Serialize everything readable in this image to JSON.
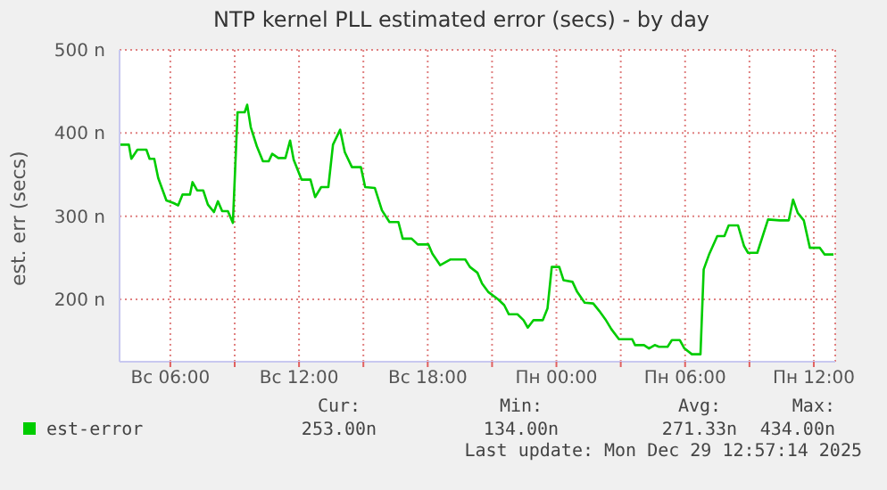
{
  "chart_data": {
    "type": "line",
    "title": "NTP kernel PLL estimated error (secs) - by day",
    "ylabel": "est. err (secs)",
    "xlim": [
      "2025-12-28T03:38",
      "2025-12-29T13:00"
    ],
    "xticks": [
      {
        "value": "2025-12-28T06:00",
        "label": "Вс 06:00"
      },
      {
        "value": "2025-12-28T09:00",
        "label": null
      },
      {
        "value": "2025-12-28T12:00",
        "label": "Вс 12:00"
      },
      {
        "value": "2025-12-28T15:00",
        "label": null
      },
      {
        "value": "2025-12-28T18:00",
        "label": "Вс 18:00"
      },
      {
        "value": "2025-12-28T21:00",
        "label": null
      },
      {
        "value": "2025-12-29T00:00",
        "label": "Пн 00:00"
      },
      {
        "value": "2025-12-29T03:00",
        "label": null
      },
      {
        "value": "2025-12-29T06:00",
        "label": "Пн 06:00"
      },
      {
        "value": "2025-12-29T09:00",
        "label": null
      },
      {
        "value": "2025-12-29T12:00",
        "label": "Пн 12:00"
      }
    ],
    "ylim": [
      125,
      500
    ],
    "yticks": [
      {
        "value": 200,
        "label": "200 n"
      },
      {
        "value": 300,
        "label": "300 n"
      },
      {
        "value": 400,
        "label": "400 n"
      },
      {
        "value": 500,
        "label": "500 n"
      }
    ],
    "grid": true,
    "legend": "bottom left",
    "marker": "none",
    "line_style": "solid",
    "x": [
      "2025-12-28T03:38",
      "2025-12-28T04:04",
      "2025-12-28T04:11",
      "2025-12-28T04:28",
      "2025-12-28T04:53",
      "2025-12-28T05:02",
      "2025-12-28T05:15",
      "2025-12-28T05:26",
      "2025-12-28T05:49",
      "2025-12-28T06:08",
      "2025-12-28T06:22",
      "2025-12-28T06:34",
      "2025-12-28T06:55",
      "2025-12-28T07:02",
      "2025-12-28T07:15",
      "2025-12-28T07:32",
      "2025-12-28T07:45",
      "2025-12-28T08:02",
      "2025-12-28T08:13",
      "2025-12-28T08:25",
      "2025-12-28T08:41",
      "2025-12-28T08:55",
      "2025-12-28T09:08",
      "2025-12-28T09:28",
      "2025-12-28T09:35",
      "2025-12-28T09:45",
      "2025-12-28T10:02",
      "2025-12-28T10:19",
      "2025-12-28T10:35",
      "2025-12-28T10:45",
      "2025-12-28T11:02",
      "2025-12-28T11:22",
      "2025-12-28T11:35",
      "2025-12-28T11:45",
      "2025-12-28T12:07",
      "2025-12-28T12:32",
      "2025-12-28T12:45",
      "2025-12-28T13:02",
      "2025-12-28T13:22",
      "2025-12-28T13:35",
      "2025-12-28T13:55",
      "2025-12-28T14:08",
      "2025-12-28T14:28",
      "2025-12-28T14:53",
      "2025-12-28T15:05",
      "2025-12-28T15:32",
      "2025-12-28T15:52",
      "2025-12-28T16:13",
      "2025-12-28T16:38",
      "2025-12-28T16:50",
      "2025-12-28T17:15",
      "2025-12-28T17:32",
      "2025-12-28T18:02",
      "2025-12-28T18:13",
      "2025-12-28T18:35",
      "2025-12-28T19:04",
      "2025-12-28T19:45",
      "2025-12-28T19:58",
      "2025-12-28T20:19",
      "2025-12-28T20:32",
      "2025-12-28T20:49",
      "2025-12-28T21:17",
      "2025-12-28T21:34",
      "2025-12-28T21:47",
      "2025-12-28T22:11",
      "2025-12-28T22:28",
      "2025-12-28T22:40",
      "2025-12-28T22:56",
      "2025-12-28T23:22",
      "2025-12-28T23:35",
      "2025-12-28T23:47",
      "2025-12-29T00:08",
      "2025-12-29T00:20",
      "2025-12-29T00:45",
      "2025-12-29T00:58",
      "2025-12-29T01:19",
      "2025-12-29T01:43",
      "2025-12-29T02:00",
      "2025-12-29T02:17",
      "2025-12-29T02:34",
      "2025-12-29T02:55",
      "2025-12-29T03:32",
      "2025-12-29T03:40",
      "2025-12-29T04:05",
      "2025-12-29T04:19",
      "2025-12-29T04:35",
      "2025-12-29T04:47",
      "2025-12-29T05:11",
      "2025-12-29T05:23",
      "2025-12-29T05:45",
      "2025-12-29T05:58",
      "2025-12-29T06:19",
      "2025-12-29T06:43",
      "2025-12-29T06:52",
      "2025-12-29T07:08",
      "2025-12-29T07:30",
      "2025-12-29T07:50",
      "2025-12-29T08:02",
      "2025-12-29T08:28",
      "2025-12-29T08:45",
      "2025-12-29T08:56",
      "2025-12-29T09:22",
      "2025-12-29T09:52",
      "2025-12-29T10:25",
      "2025-12-29T10:50",
      "2025-12-29T11:02",
      "2025-12-29T11:15",
      "2025-12-29T11:32",
      "2025-12-29T11:49",
      "2025-12-29T12:17",
      "2025-12-29T12:30",
      "2025-12-29T12:55"
    ],
    "series": [
      {
        "name": "est-error",
        "color": "#00cc00",
        "values": [
          386,
          386,
          369,
          380,
          380,
          369,
          369,
          346,
          319,
          316,
          313,
          326,
          326,
          341,
          331,
          331,
          314,
          305,
          318,
          306,
          306,
          292,
          425,
          425,
          434,
          407,
          384,
          366,
          366,
          375,
          370,
          370,
          391,
          368,
          344,
          344,
          323,
          335,
          335,
          386,
          404,
          377,
          359,
          359,
          335,
          334,
          307,
          293,
          293,
          273,
          273,
          266,
          266,
          255,
          241,
          248,
          248,
          239,
          232,
          219,
          209,
          200,
          193,
          182,
          182,
          175,
          166,
          175,
          175,
          189,
          239,
          239,
          223,
          221,
          209,
          196,
          195,
          186,
          176,
          164,
          152,
          152,
          145,
          145,
          141,
          145,
          143,
          143,
          151,
          151,
          141,
          134,
          134,
          236,
          255,
          276,
          276,
          289,
          289,
          264,
          256,
          256,
          296,
          295,
          295,
          320,
          304,
          295,
          262,
          262,
          254,
          254
        ]
      }
    ],
    "annotations": [
      "Cur:",
      "253.00n",
      "Min:",
      "134.00n",
      "Avg:",
      "271.33n",
      "Max:",
      "434.00n",
      "Last update: Mon Dec 29 12:57:14 2025"
    ]
  }
}
